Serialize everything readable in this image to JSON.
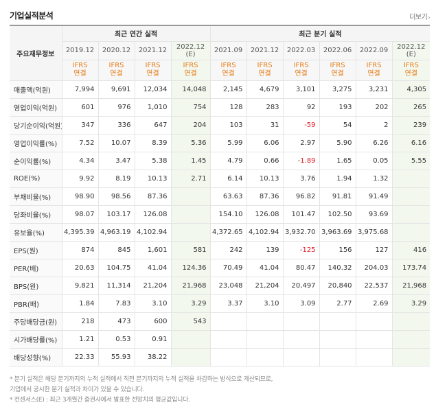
{
  "header": {
    "title": "기업실적분석",
    "more_label": "더보기"
  },
  "table": {
    "corner_label": "주요재무정보",
    "group_annual": "최근 연간 실적",
    "group_quarterly": "최근 분기 실적",
    "periods": [
      "2019.12",
      "2020.12",
      "2021.12",
      "2022.12",
      "2021.09",
      "2021.12",
      "2022.03",
      "2022.06",
      "2022.09",
      "2022.12"
    ],
    "est_mark": "(E)",
    "standard": [
      "IFRS",
      "IFRS",
      "IFRS",
      "IFRS",
      "IFRS",
      "IFRS",
      "IFRS",
      "IFRS",
      "IFRS",
      "IFRS"
    ],
    "basis": [
      "연결",
      "연결",
      "연결",
      "연결",
      "연결",
      "연결",
      "연결",
      "연결",
      "연결",
      "연결"
    ],
    "rows": [
      {
        "label": "매출액(억원)",
        "values": [
          "7,994",
          "9,691",
          "12,034",
          "14,048",
          "2,145",
          "4,679",
          "3,101",
          "3,275",
          "3,231",
          "4,305"
        ]
      },
      {
        "label": "영업이익(억원)",
        "values": [
          "601",
          "976",
          "1,010",
          "754",
          "128",
          "283",
          "92",
          "193",
          "202",
          "265"
        ]
      },
      {
        "label": "당기순이익(억원)",
        "values": [
          "347",
          "336",
          "647",
          "204",
          "103",
          "31",
          "-59",
          "54",
          "2",
          "239"
        ]
      },
      {
        "label": "영업이익률(%)",
        "values": [
          "7.52",
          "10.07",
          "8.39",
          "5.36",
          "5.99",
          "6.06",
          "2.97",
          "5.90",
          "6.26",
          "6.16"
        ]
      },
      {
        "label": "순이익률(%)",
        "values": [
          "4.34",
          "3.47",
          "5.38",
          "1.45",
          "4.79",
          "0.66",
          "-1.89",
          "1.65",
          "0.05",
          "5.55"
        ]
      },
      {
        "label": "ROE(%)",
        "values": [
          "9.92",
          "8.19",
          "10.13",
          "2.71",
          "6.14",
          "10.13",
          "3.76",
          "1.94",
          "1.32",
          ""
        ]
      },
      {
        "label": "부채비율(%)",
        "values": [
          "98.90",
          "98.56",
          "87.36",
          "",
          "63.63",
          "87.36",
          "96.82",
          "91.81",
          "91.49",
          ""
        ]
      },
      {
        "label": "당좌비율(%)",
        "values": [
          "98.07",
          "103.17",
          "126.08",
          "",
          "154.10",
          "126.08",
          "101.47",
          "102.50",
          "93.69",
          ""
        ]
      },
      {
        "label": "유보율(%)",
        "values": [
          "4,395.39",
          "4,963.19",
          "4,102.94",
          "",
          "4,372.65",
          "4,102.94",
          "3,932.70",
          "3,963.69",
          "3,975.68",
          ""
        ]
      },
      {
        "label": "EPS(원)",
        "values": [
          "874",
          "845",
          "1,601",
          "581",
          "242",
          "139",
          "-125",
          "156",
          "127",
          "416"
        ]
      },
      {
        "label": "PER(배)",
        "values": [
          "20.63",
          "104.75",
          "41.04",
          "124.36",
          "70.49",
          "41.04",
          "80.47",
          "140.32",
          "204.03",
          "173.74"
        ]
      },
      {
        "label": "BPS(원)",
        "values": [
          "9,821",
          "11,314",
          "21,204",
          "21,968",
          "23,048",
          "21,204",
          "20,497",
          "20,840",
          "22,537",
          "21,968"
        ]
      },
      {
        "label": "PBR(배)",
        "values": [
          "1.84",
          "7.83",
          "3.10",
          "3.29",
          "3.37",
          "3.10",
          "3.09",
          "2.77",
          "2.69",
          "3.29"
        ]
      },
      {
        "label": "주당배당금(원)",
        "values": [
          "218",
          "473",
          "600",
          "543",
          "",
          "",
          "",
          "",
          "",
          ""
        ]
      },
      {
        "label": "시가배당률(%)",
        "values": [
          "1.21",
          "0.53",
          "0.91",
          "",
          "",
          "",
          "",
          "",
          "",
          ""
        ]
      },
      {
        "label": "배당성향(%)",
        "values": [
          "22.33",
          "55.93",
          "38.22",
          "",
          "",
          "",
          "",
          "",
          "",
          ""
        ]
      }
    ]
  },
  "notes": [
    "* 분기 실적은 해당 분기까지의 누적 실적에서 직전 분기까지의 누적 실적을 차감하는 방식으로 계산되므로,",
    "  기업에서 공시한 분기 실적과 차이가 있을 수 있습니다.",
    "* 컨센서스(E) : 최근 3개월간 증권사에서 발표한 전망치의 평균값입니다."
  ]
}
